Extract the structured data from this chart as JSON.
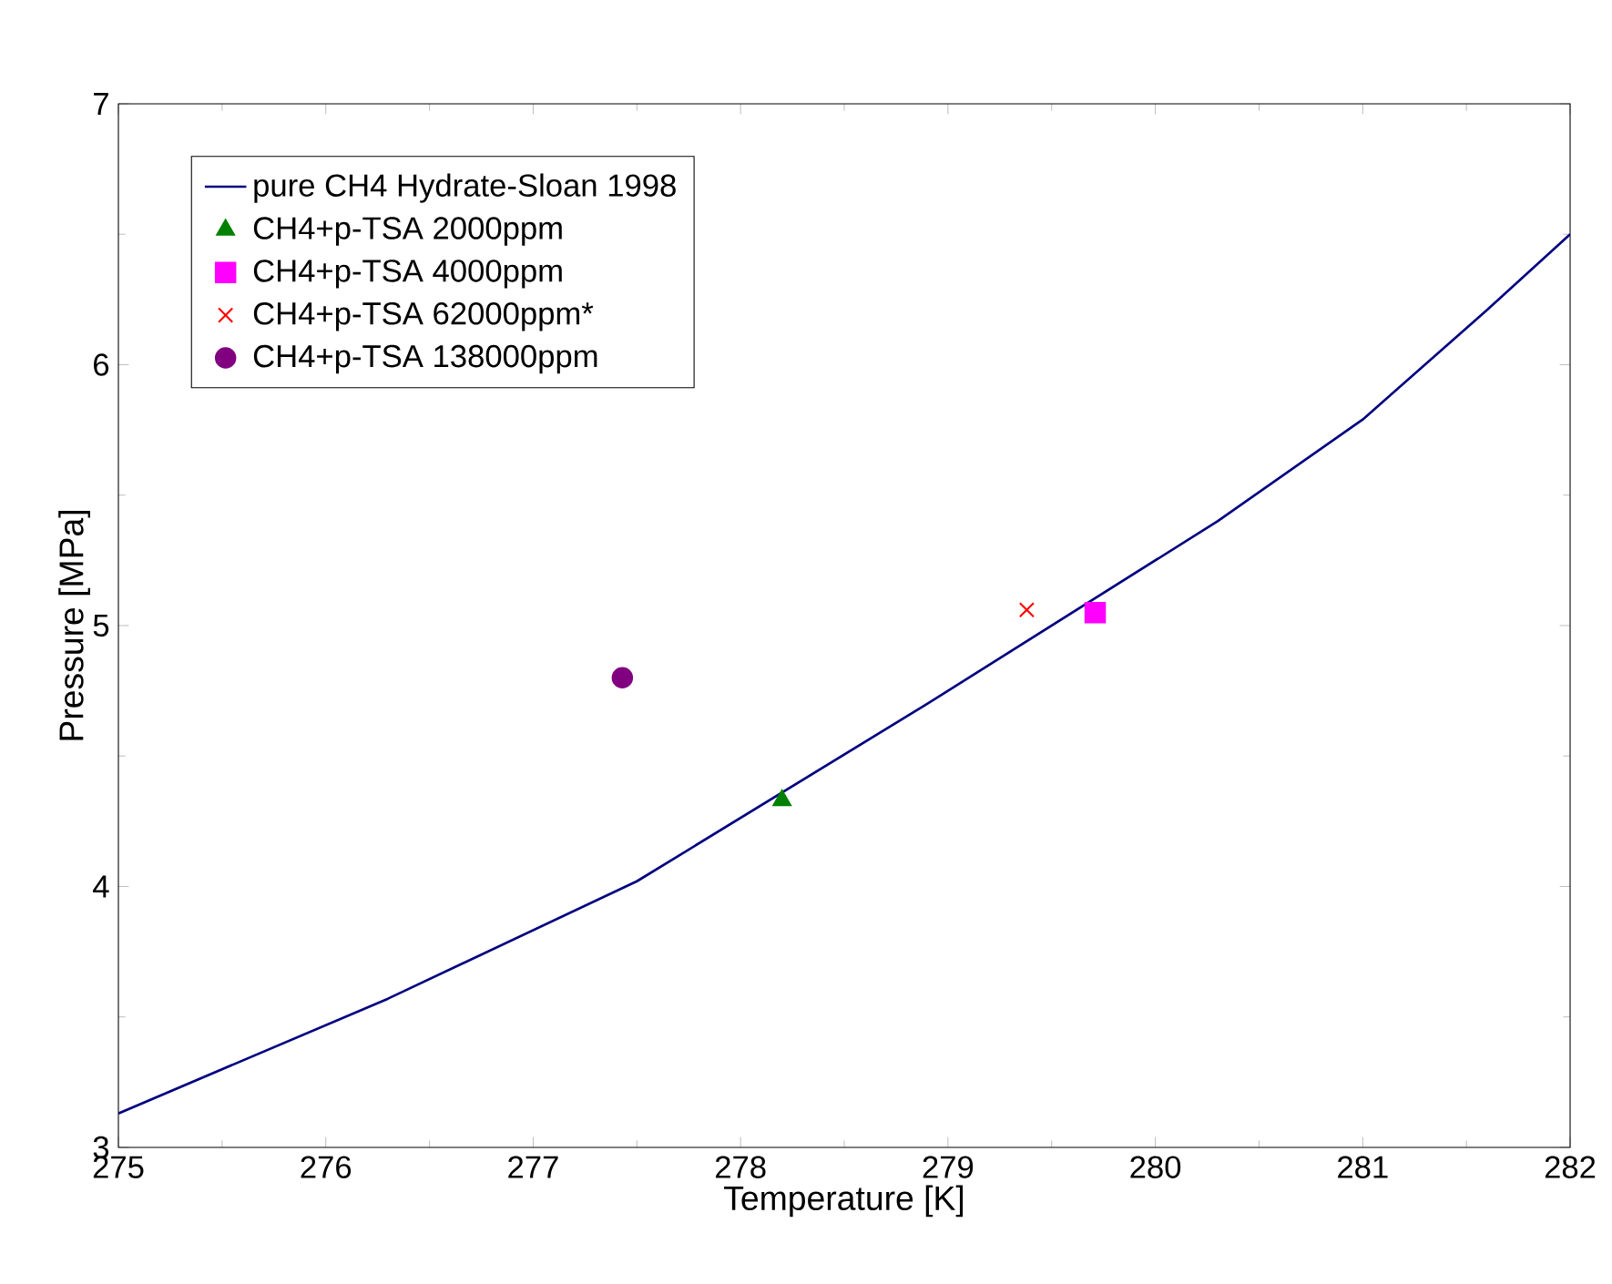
{
  "chart_data": {
    "type": "line",
    "xlabel": "Temperature [K]",
    "ylabel": "Pressure [MPa]",
    "xlim": [
      275,
      282
    ],
    "ylim": [
      3,
      7
    ],
    "xticks": [
      275,
      276,
      277,
      278,
      279,
      280,
      281,
      282
    ],
    "yticks": [
      3,
      4,
      5,
      6,
      7
    ],
    "grid": false,
    "legend": "top left",
    "series": [
      {
        "name": "pure CH4 Hydrate-Sloan 1998",
        "color": "#000080",
        "marker": "none",
        "line_style": "solid",
        "x": [
          275,
          276.3,
          277.5,
          278.9,
          280.3,
          281,
          281.6,
          282
        ],
        "values": [
          3.13,
          3.57,
          4.02,
          4.7,
          5.4,
          5.79,
          6.21,
          6.5
        ]
      },
      {
        "name": "CH4+p-TSA 2000ppm",
        "type": "scatter",
        "color": "#008000",
        "marker": "triangle",
        "x": [
          278.2
        ],
        "values": [
          4.33
        ]
      },
      {
        "name": "CH4+p-TSA 4000ppm",
        "type": "scatter",
        "color": "#ff00ff",
        "marker": "square",
        "x": [
          279.71
        ],
        "values": [
          5.05
        ]
      },
      {
        "name": "CH4+p-TSA 62000ppm*",
        "type": "scatter",
        "color": "#ff0000",
        "marker": "cross",
        "x": [
          279.38
        ],
        "values": [
          5.06
        ]
      },
      {
        "name": "CH4+p-TSA 138000ppm",
        "type": "scatter",
        "color": "#800080",
        "marker": "circle",
        "x": [
          277.43
        ],
        "values": [
          4.8
        ]
      }
    ]
  }
}
